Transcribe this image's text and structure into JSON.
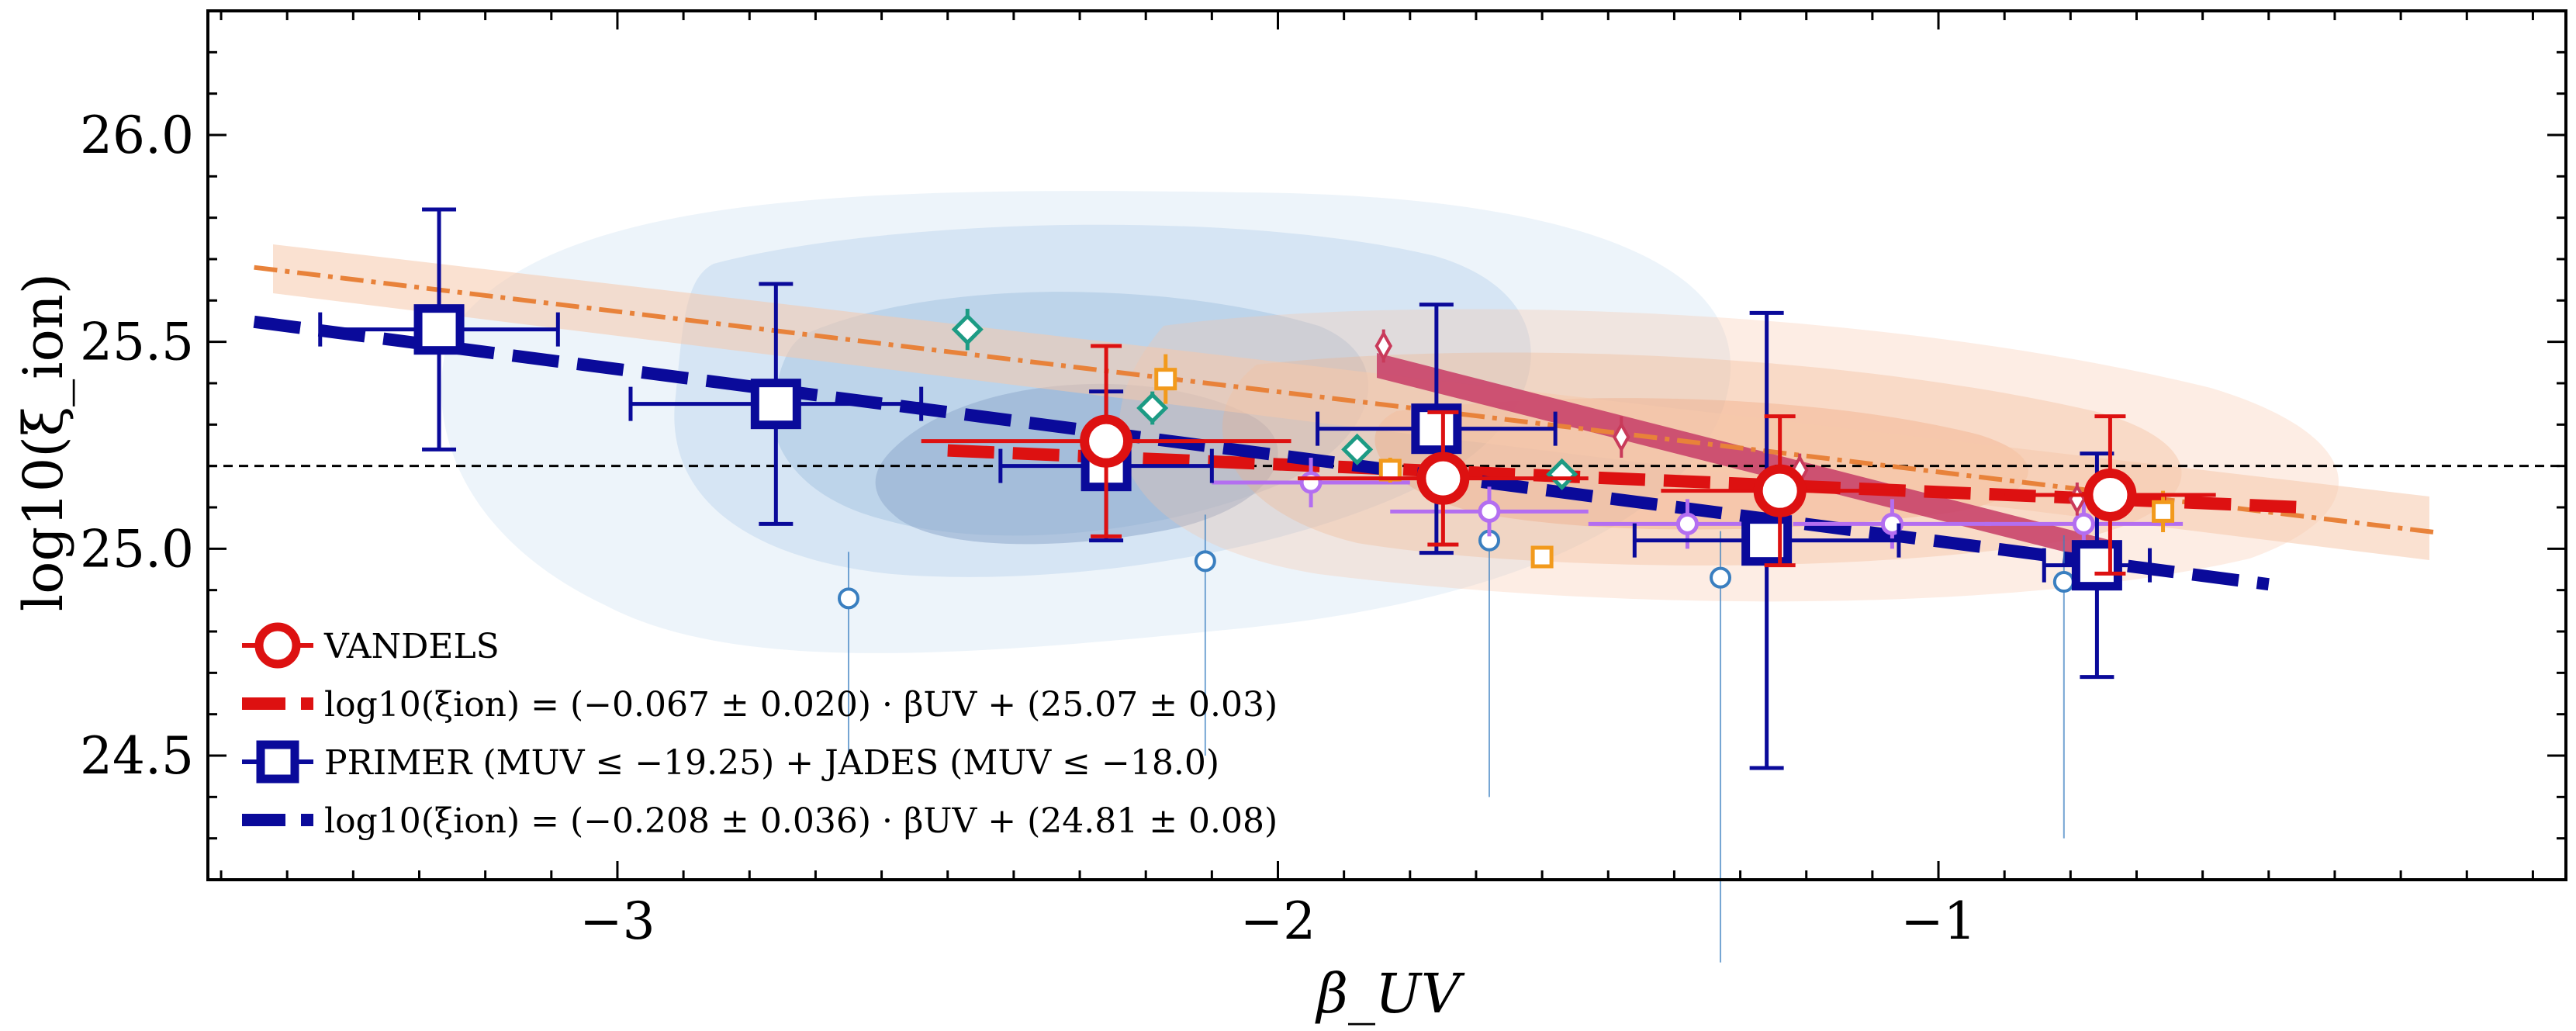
{
  "chart_data": {
    "type": "scatter",
    "xlabel": "β_UV",
    "ylabel": "log10(ξ_ion)",
    "xlim": [
      -3.62,
      -0.05
    ],
    "ylim": [
      24.2,
      26.3
    ],
    "x_ticks": [
      -3,
      -2,
      -1
    ],
    "x_tick_labels": [
      "−3",
      "−2",
      "−1"
    ],
    "y_ticks": [
      24.5,
      25.0,
      25.5,
      26.0
    ],
    "y_tick_labels": [
      "24.5",
      "25.0",
      "25.5",
      "26.0"
    ],
    "reference_line": {
      "y": 25.2,
      "style": "dashed"
    },
    "legend": [
      {
        "key": "vandels",
        "label": "VANDELS"
      },
      {
        "key": "vandels_fit",
        "label": "log10(ξion) = (−0.067 ± 0.020) · βUV + (25.07 ± 0.03)"
      },
      {
        "key": "primer",
        "label": "PRIMER (MUV ≤ −19.25) + JADES (MUV ≤ −18.0)"
      },
      {
        "key": "primer_fit",
        "label": "log10(ξion) = (−0.208 ± 0.036) · βUV + (24.81 ± 0.08)"
      }
    ],
    "series": [
      {
        "name": "VANDELS",
        "color": "#dd1111",
        "x": [
          -2.26,
          -1.75,
          -1.24,
          -0.74
        ],
        "y": [
          25.26,
          25.17,
          25.14,
          25.13
        ],
        "xerr": [
          0.28,
          0.22,
          0.18,
          0.16
        ],
        "yerr": [
          0.23,
          0.16,
          0.18,
          0.19
        ]
      },
      {
        "name": "PRIMER (MUV ≤ −19.25) + JADES (MUV ≤ −18.0)",
        "color": "#0a0a9a",
        "x": [
          -3.27,
          -2.76,
          -2.26,
          -1.76,
          -1.26,
          -0.76
        ],
        "y": [
          25.53,
          25.35,
          25.2,
          25.29,
          25.02,
          24.96
        ],
        "xerr": [
          0.18,
          0.22,
          0.16,
          0.18,
          0.2,
          0.08
        ],
        "yerr": [
          0.29,
          0.29,
          0.18,
          0.3,
          0.55,
          0.27
        ]
      },
      {
        "name": "literature-purple",
        "color": "#b36ef0",
        "x": [
          -1.95,
          -1.68,
          -1.38,
          -1.07,
          -0.78
        ],
        "y": [
          25.16,
          25.09,
          25.06,
          25.06,
          25.06
        ],
        "xerr": [
          0.15,
          0.15,
          0.15,
          0.15,
          0.15
        ],
        "yerr": [
          0.06,
          0.06,
          0.06,
          0.06,
          0.06
        ]
      },
      {
        "name": "literature-teal",
        "color": "#1c9b84",
        "x": [
          -2.47,
          -2.19,
          -1.88,
          -1.57
        ],
        "y": [
          25.53,
          25.34,
          25.24,
          25.18
        ],
        "yerr": [
          0.05,
          0.04,
          0.03,
          0.03
        ]
      },
      {
        "name": "literature-orange",
        "color": "#f29a1c",
        "x": [
          -2.17,
          -1.83,
          -1.6,
          -0.66
        ],
        "y": [
          25.41,
          25.19,
          24.98,
          25.09
        ],
        "yerr": [
          0.06,
          0.03,
          0.02,
          0.05
        ]
      },
      {
        "name": "literature-pink",
        "color": "#c93a5a",
        "x": [
          -1.84,
          -1.48,
          -1.21,
          -0.79
        ],
        "y": [
          25.49,
          25.27,
          25.19,
          25.12
        ],
        "yerr": [
          0.04,
          0.05,
          0.04,
          0.04
        ]
      },
      {
        "name": "literature-lightblue",
        "color": "#3a7fc0",
        "x": [
          -2.65,
          -2.11,
          -1.68,
          -1.33,
          -0.81
        ],
        "y": [
          24.88,
          24.97,
          25.02,
          24.93,
          24.92
        ],
        "ylower": [
          24.5,
          24.5,
          24.4,
          24.0,
          24.3
        ]
      }
    ],
    "fits": [
      {
        "name": "VANDELS fit",
        "color": "#dd1111",
        "x": [
          -2.5,
          -0.45
        ],
        "y": [
          25.2375,
          25.1002
        ]
      },
      {
        "name": "PRIMER+JADES fit",
        "color": "#0a0a9a",
        "x": [
          -3.55,
          -0.5
        ],
        "y": [
          25.5484,
          24.914
        ]
      },
      {
        "name": "orange dash-dot",
        "color": "#e8823a",
        "x": [
          -3.55,
          -0.25
        ],
        "y": [
          25.68,
          25.04
        ]
      },
      {
        "name": "crimson band",
        "color": "#c9446a",
        "x": [
          -1.85,
          -0.76
        ],
        "y": [
          25.46,
          24.96
        ]
      }
    ]
  }
}
